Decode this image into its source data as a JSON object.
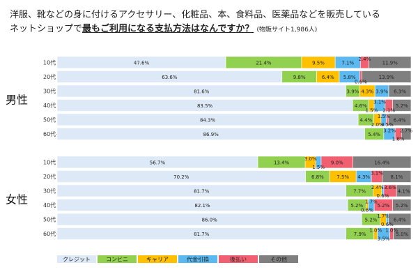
{
  "title": {
    "line1": "洋服、靴などの身に付けるアクセサリー、化粧品、本、食料品、医薬品などを販売している",
    "line2_pre": "ネットショップで",
    "line2_emph": "最もご利用になる支払方法はなんですか？",
    "line2_note": "(物販サイト1,986人)"
  },
  "colors": {
    "クレジット": "#dde9f6",
    "コンビニ": "#92d050",
    "キャリア": "#ffc000",
    "代金引換": "#5bb9f0",
    "後払い": "#f06070",
    "その他": "#7f7f7f"
  },
  "chart_data": {
    "type": "bar",
    "orientation": "horizontal-stacked-100",
    "series_names": [
      "クレジット",
      "コンビニ",
      "キャリア",
      "代金引換",
      "後払い",
      "その他"
    ],
    "groups": [
      {
        "name": "男性",
        "rows": [
          {
            "label": "10代",
            "values": [
              47.6,
              21.4,
              9.5,
              7.1,
              2.4,
              11.9
            ]
          },
          {
            "label": "20代",
            "values": [
              63.6,
              9.8,
              6.4,
              5.8,
              0.6,
              13.9
            ]
          },
          {
            "label": "30代",
            "values": [
              81.6,
              3.9,
              4.3,
              3.9,
              0.0,
              6.3
            ]
          },
          {
            "label": "40代",
            "values": [
              83.5,
              4.6,
              1.5,
              3.1,
              2.1,
              5.2
            ]
          },
          {
            "label": "50代",
            "values": [
              84.3,
              4.4,
              2.0,
              1.5,
              0.5,
              6.4
            ]
          },
          {
            "label": "60代~",
            "values": [
              86.9,
              5.4,
              0.0,
              3.2,
              1.8,
              2.7
            ]
          }
        ]
      },
      {
        "name": "女性",
        "rows": [
          {
            "label": "10代",
            "values": [
              56.7,
              13.4,
              3.0,
              1.5,
              9.0,
              16.4
            ]
          },
          {
            "label": "20代",
            "values": [
              70.2,
              6.8,
              7.5,
              4.3,
              3.1,
              8.1
            ]
          },
          {
            "label": "30代",
            "values": [
              81.7,
              7.7,
              2.4,
              0.6,
              3.6,
              4.1
            ]
          },
          {
            "label": "40代",
            "values": [
              82.1,
              5.2,
              0.6,
              1.7,
              5.2,
              5.2
            ]
          },
          {
            "label": "50代",
            "values": [
              86.0,
              5.2,
              1.7,
              0.6,
              0.0,
              6.4
            ]
          },
          {
            "label": "60代~",
            "values": [
              81.7,
              7.9,
              1.0,
              3.5,
              1.0,
              5.0
            ]
          }
        ]
      }
    ],
    "legend": [
      "クレジット",
      "コンビニ",
      "キャリア",
      "代金引換",
      "後払い",
      "その他"
    ],
    "legend_position": "bottom"
  }
}
